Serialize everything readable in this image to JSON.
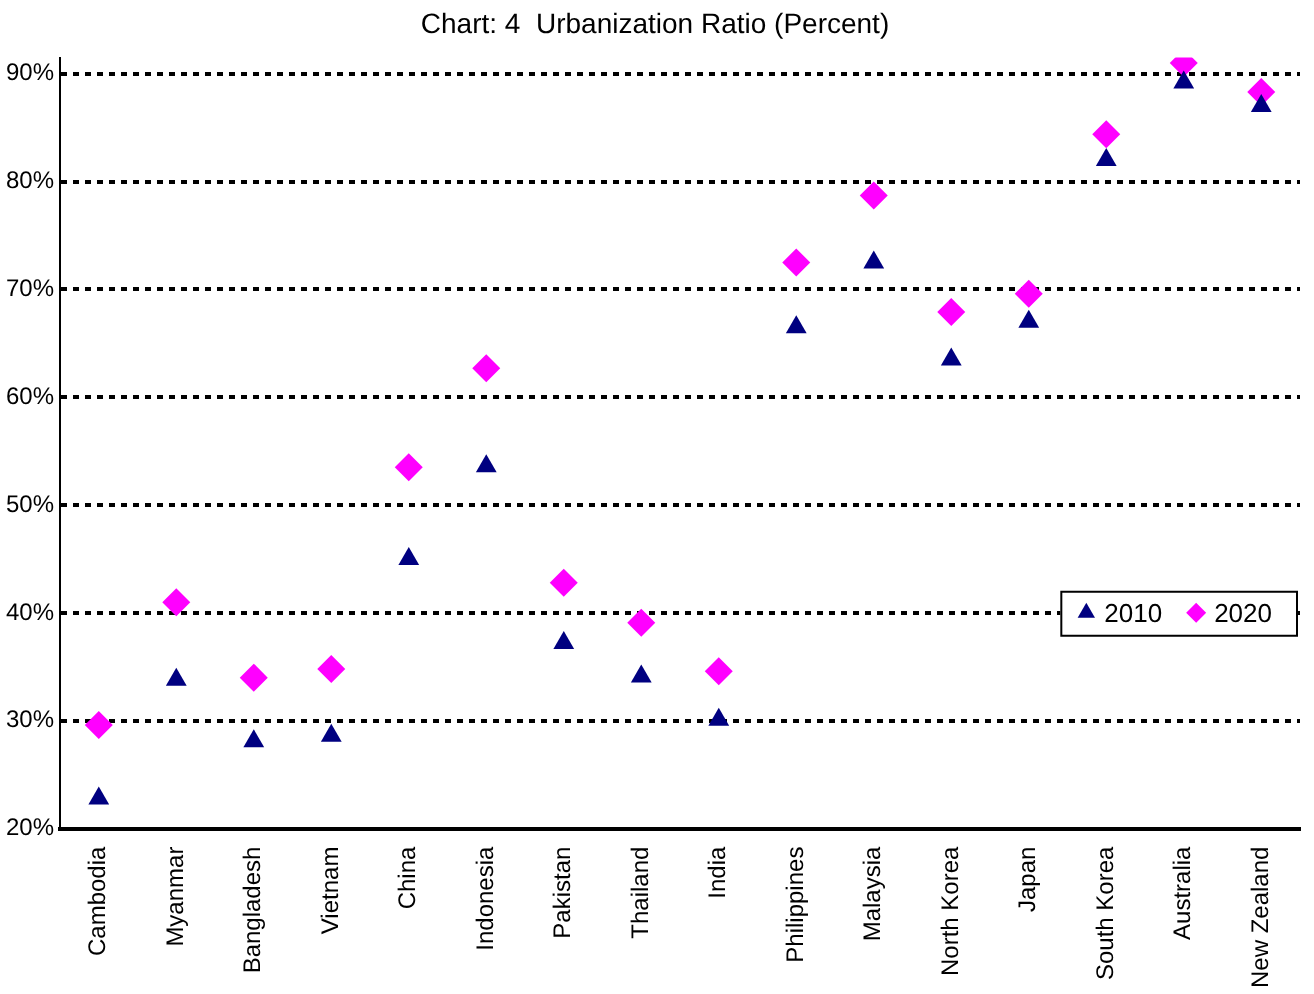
{
  "chart_data": {
    "type": "scatter",
    "title": "Chart: 4  Urbanization Ratio (Percent)",
    "categories": [
      "Cambodia",
      "Myanmar",
      "Bangladesh",
      "Vietnam",
      "China",
      "Indonesia",
      "Pakistan",
      "Thailand",
      "India",
      "Philippines",
      "Malaysia",
      "North Korea",
      "Japan",
      "South Korea",
      "Australia",
      "New Zealand"
    ],
    "series": [
      {
        "name": "2010",
        "color": "#000080",
        "marker": "triangle",
        "values": [
          22.8,
          33.8,
          28.1,
          28.6,
          45.0,
          53.6,
          37.2,
          34.1,
          30.1,
          66.5,
          72.5,
          63.5,
          67.0,
          82.0,
          89.2,
          87.0
        ]
      },
      {
        "name": "2020",
        "color": "#ff00ff",
        "marker": "diamond",
        "values": [
          29.6,
          41.0,
          34.0,
          34.8,
          53.5,
          62.7,
          42.8,
          39.1,
          34.6,
          72.5,
          78.7,
          67.9,
          69.6,
          84.4,
          91.0,
          88.3
        ]
      }
    ],
    "ylim": [
      20,
      91.5
    ],
    "yticks": [
      {
        "value": 20,
        "label": "20%"
      },
      {
        "value": 30,
        "label": "30%"
      },
      {
        "value": 40,
        "label": "40%"
      },
      {
        "value": 50,
        "label": "50%"
      },
      {
        "value": 60,
        "label": "60%"
      },
      {
        "value": 70,
        "label": "70%"
      },
      {
        "value": 80,
        "label": "80%"
      },
      {
        "value": 90,
        "label": "90%"
      }
    ],
    "grid": "y",
    "legend": "right"
  }
}
